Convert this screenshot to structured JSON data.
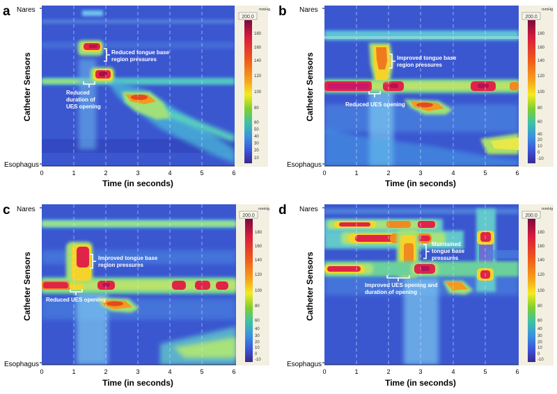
{
  "chart_data": [
    {
      "type": "heatmap",
      "panel_label": "a",
      "xlabel": "Time (in seconds)",
      "ylabel": "Catheter Sensors",
      "y_top_label": "Nares",
      "y_bottom_label": "Esophagus",
      "xlim": [
        0,
        6.6
      ],
      "x_ticks": [
        "0",
        "1",
        "2",
        "3",
        "4",
        "5",
        "6"
      ],
      "colorbar": {
        "unit": "mmHg",
        "max_label": "200.0",
        "ticks": [
          "180",
          "160",
          "140",
          "120",
          "100",
          "80",
          "60",
          "50",
          "40",
          "30",
          "20",
          "10"
        ]
      },
      "annotations": [
        "Reduced tongue base region pressures",
        "Reduced duration of UES opening"
      ]
    },
    {
      "type": "heatmap",
      "panel_label": "b",
      "xlabel": "Time (in seconds)",
      "ylabel": "Catheter Sensors",
      "y_top_label": "Nares",
      "y_bottom_label": "Esophagus",
      "xlim": [
        0,
        6.6
      ],
      "x_ticks": [
        "0",
        "1",
        "2",
        "3",
        "4",
        "5",
        "6"
      ],
      "colorbar": {
        "unit": "mmHg",
        "max_label": "200.0",
        "ticks": [
          "180",
          "160",
          "140",
          "120",
          "100",
          "80",
          "60",
          "40",
          "20",
          "10",
          "0",
          "-10"
        ]
      },
      "annotations": [
        "Improved tongue base region pressures",
        "Reduced UES opening"
      ]
    },
    {
      "type": "heatmap",
      "panel_label": "c",
      "xlabel": "Time (in seconds)",
      "ylabel": "Catheter Sensors",
      "y_top_label": "Nares",
      "y_bottom_label": "Esophagus",
      "xlim": [
        0,
        6.6
      ],
      "x_ticks": [
        "0",
        "1",
        "2",
        "3",
        "4",
        "5",
        "6"
      ],
      "colorbar": {
        "unit": "mmHg",
        "max_label": "200.0",
        "ticks": [
          "180",
          "160",
          "140",
          "120",
          "100",
          "80",
          "60",
          "40",
          "30",
          "20",
          "10",
          "0",
          "-10"
        ]
      },
      "annotations": [
        "Improved tongue base region pressures",
        "Reduced UES opening"
      ]
    },
    {
      "type": "heatmap",
      "panel_label": "d",
      "xlabel": "Time (in seconds)",
      "ylabel": "Catheter Sensors",
      "y_top_label": "Nares",
      "y_bottom_label": "Esophagus",
      "xlim": [
        0,
        6.6
      ],
      "x_ticks": [
        "0",
        "1",
        "2",
        "3",
        "4",
        "5",
        "6"
      ],
      "colorbar": {
        "unit": "mmHg",
        "max_label": "200.0",
        "ticks": [
          "180",
          "160",
          "140",
          "120",
          "100",
          "80",
          "60",
          "40",
          "30",
          "20",
          "10",
          "0",
          "-10"
        ]
      },
      "annotations": [
        "Maintained tongue base pressures",
        "Improved UES opening and duration of opening"
      ]
    }
  ]
}
